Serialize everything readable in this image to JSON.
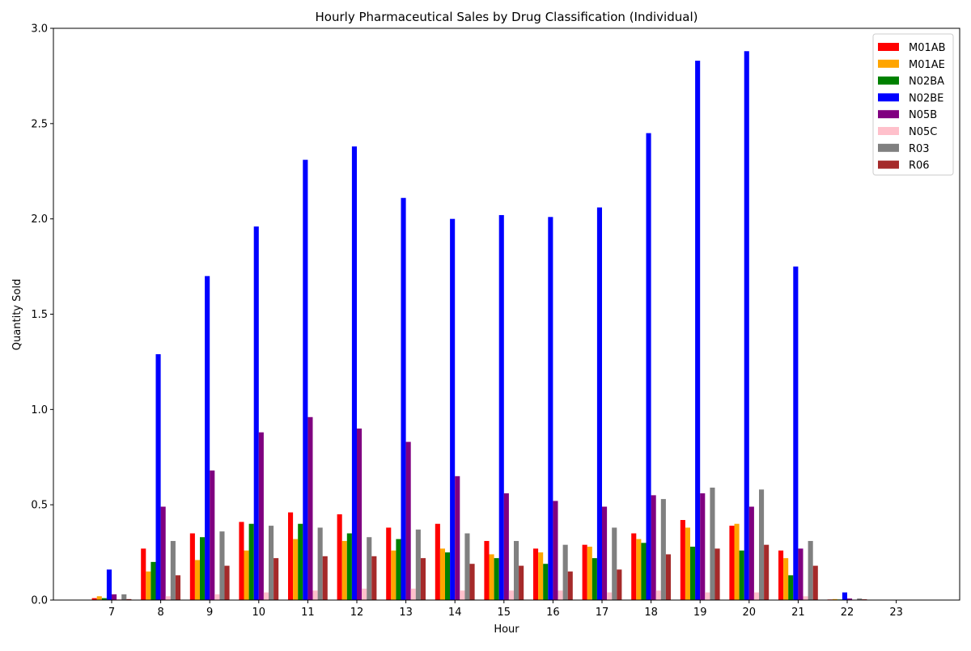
{
  "chart_data": {
    "type": "bar",
    "title": "Hourly Pharmaceutical Sales by Drug Classification (Individual)",
    "xlabel": "Hour",
    "ylabel": "Quantity Sold",
    "ylim": [
      0,
      3.0
    ],
    "yticks": [
      "0.0",
      "0.5",
      "1.0",
      "1.5",
      "2.0",
      "2.5",
      "3.0"
    ],
    "categories": [
      "7",
      "8",
      "9",
      "10",
      "11",
      "12",
      "13",
      "14",
      "15",
      "16",
      "17",
      "18",
      "19",
      "20",
      "21",
      "22",
      "23"
    ],
    "legend_position": "top-right",
    "grid": false,
    "series": [
      {
        "name": "M01AB",
        "color": "#ff0000",
        "values": [
          0.01,
          0.27,
          0.35,
          0.41,
          0.46,
          0.45,
          0.38,
          0.4,
          0.31,
          0.27,
          0.29,
          0.35,
          0.42,
          0.39,
          0.26,
          0.003,
          0
        ]
      },
      {
        "name": "M01AE",
        "color": "#ffa500",
        "values": [
          0.02,
          0.15,
          0.21,
          0.26,
          0.32,
          0.31,
          0.26,
          0.27,
          0.24,
          0.25,
          0.28,
          0.32,
          0.38,
          0.4,
          0.22,
          0.005,
          0
        ]
      },
      {
        "name": "N02BA",
        "color": "#008000",
        "values": [
          0.01,
          0.2,
          0.33,
          0.4,
          0.4,
          0.35,
          0.32,
          0.25,
          0.22,
          0.19,
          0.22,
          0.3,
          0.28,
          0.26,
          0.13,
          0.003,
          0
        ]
      },
      {
        "name": "N02BE",
        "color": "#0000ff",
        "values": [
          0.16,
          1.29,
          1.7,
          1.96,
          2.31,
          2.38,
          2.11,
          2.0,
          2.02,
          2.01,
          2.06,
          2.45,
          2.83,
          2.88,
          1.75,
          0.04,
          0
        ]
      },
      {
        "name": "N05B",
        "color": "#800080",
        "values": [
          0.03,
          0.49,
          0.68,
          0.88,
          0.96,
          0.9,
          0.83,
          0.65,
          0.56,
          0.52,
          0.49,
          0.55,
          0.56,
          0.49,
          0.27,
          0.008,
          0
        ]
      },
      {
        "name": "N05C",
        "color": "#ffc0cb",
        "values": [
          0.005,
          0.02,
          0.03,
          0.04,
          0.05,
          0.06,
          0.06,
          0.05,
          0.05,
          0.05,
          0.04,
          0.05,
          0.04,
          0.04,
          0.02,
          0.002,
          0
        ]
      },
      {
        "name": "R03",
        "color": "#808080",
        "values": [
          0.03,
          0.31,
          0.36,
          0.39,
          0.38,
          0.33,
          0.37,
          0.35,
          0.31,
          0.29,
          0.38,
          0.53,
          0.59,
          0.58,
          0.31,
          0.008,
          0
        ]
      },
      {
        "name": "R06",
        "color": "#a52a2a",
        "values": [
          0.005,
          0.13,
          0.18,
          0.22,
          0.23,
          0.23,
          0.22,
          0.19,
          0.18,
          0.15,
          0.16,
          0.24,
          0.27,
          0.29,
          0.18,
          0.004,
          0
        ]
      }
    ]
  }
}
